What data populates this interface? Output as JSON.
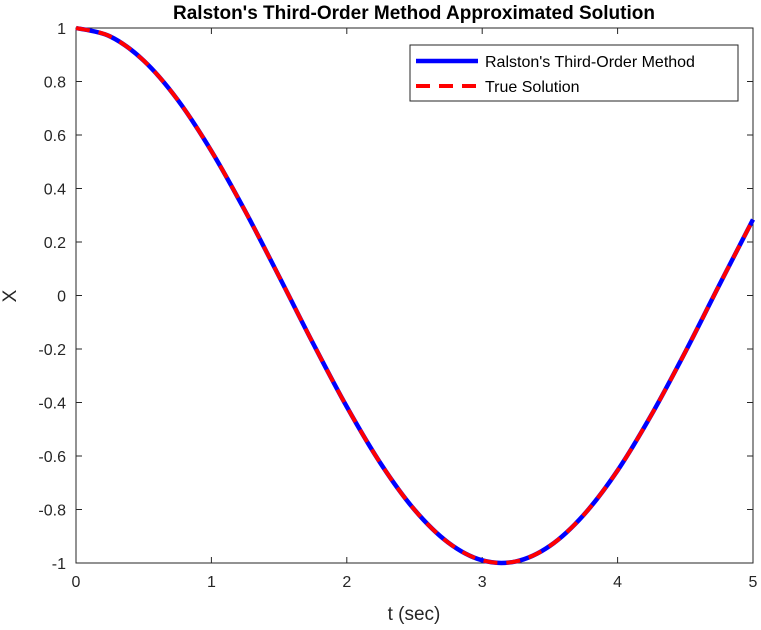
{
  "chart_data": {
    "type": "line",
    "title": "Ralston's Third-Order Method Approximated Solution",
    "xlabel": "t (sec)",
    "ylabel": "X",
    "xlim": [
      0,
      5
    ],
    "ylim": [
      -1,
      1
    ],
    "x_ticks": [
      "0",
      "1",
      "2",
      "3",
      "4",
      "5"
    ],
    "y_ticks": [
      "-1",
      "-0.8",
      "-0.6",
      "-0.4",
      "-0.2",
      "0",
      "0.2",
      "0.4",
      "0.6",
      "0.8",
      "1"
    ],
    "grid": false,
    "legend_position": "top-right",
    "x": [
      0,
      0.25,
      0.5,
      0.75,
      1,
      1.25,
      1.5,
      1.75,
      2,
      2.25,
      2.5,
      2.75,
      3,
      3.25,
      3.5,
      3.75,
      4,
      4.25,
      4.5,
      4.75,
      5
    ],
    "series": [
      {
        "name": "Ralston's Third-Order Method",
        "color": "#0000ff",
        "style": "solid",
        "values": [
          1,
          0.969,
          0.878,
          0.732,
          0.54,
          0.315,
          0.071,
          -0.178,
          -0.416,
          -0.628,
          -0.801,
          -0.924,
          -0.99,
          -0.994,
          -0.936,
          -0.82,
          -0.654,
          -0.446,
          -0.211,
          0.038,
          0.284
        ]
      },
      {
        "name": "True Solution",
        "color": "#ff0000",
        "style": "dashed",
        "values": [
          1,
          0.969,
          0.878,
          0.732,
          0.54,
          0.315,
          0.071,
          -0.178,
          -0.416,
          -0.628,
          -0.801,
          -0.924,
          -0.99,
          -0.994,
          -0.936,
          -0.82,
          -0.654,
          -0.446,
          -0.211,
          0.038,
          0.284
        ]
      }
    ]
  }
}
